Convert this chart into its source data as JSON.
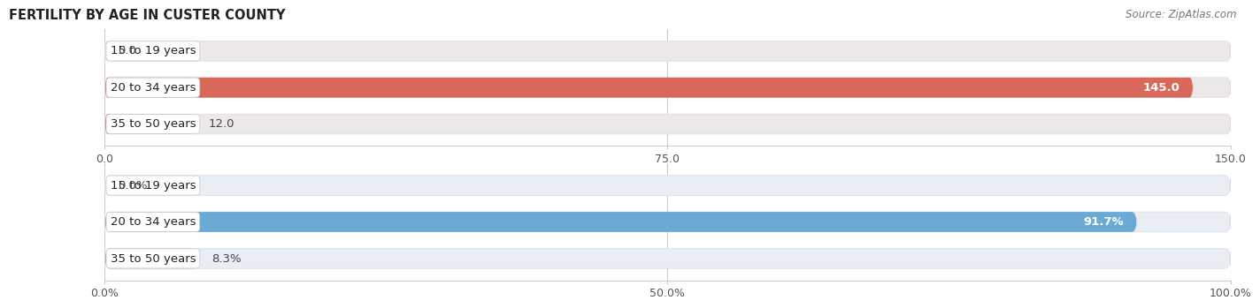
{
  "title": "FERTILITY BY AGE IN CUSTER COUNTY",
  "source": "Source: ZipAtlas.com",
  "top_chart": {
    "categories": [
      "15 to 19 years",
      "20 to 34 years",
      "35 to 50 years"
    ],
    "values": [
      0.0,
      145.0,
      12.0
    ],
    "bar_color": "#d9685a",
    "bg_color": "#e8e0e0",
    "bg_track_color": "#ede8e8",
    "xlim": [
      0,
      150
    ],
    "xticks": [
      0.0,
      75.0,
      150.0
    ]
  },
  "bottom_chart": {
    "categories": [
      "15 to 19 years",
      "20 to 34 years",
      "35 to 50 years"
    ],
    "values": [
      0.0,
      91.7,
      8.3
    ],
    "bar_color": "#6aaad4",
    "bg_color": "#dde8f0",
    "bg_track_color": "#e8eef3",
    "xlim": [
      0,
      100
    ],
    "xticks": [
      0.0,
      50.0,
      100.0
    ]
  },
  "label_fontsize": 9.5,
  "title_fontsize": 10.5,
  "source_fontsize": 8.5,
  "bar_height": 0.55,
  "label_color": "#333333",
  "fig_bg": "#ffffff"
}
